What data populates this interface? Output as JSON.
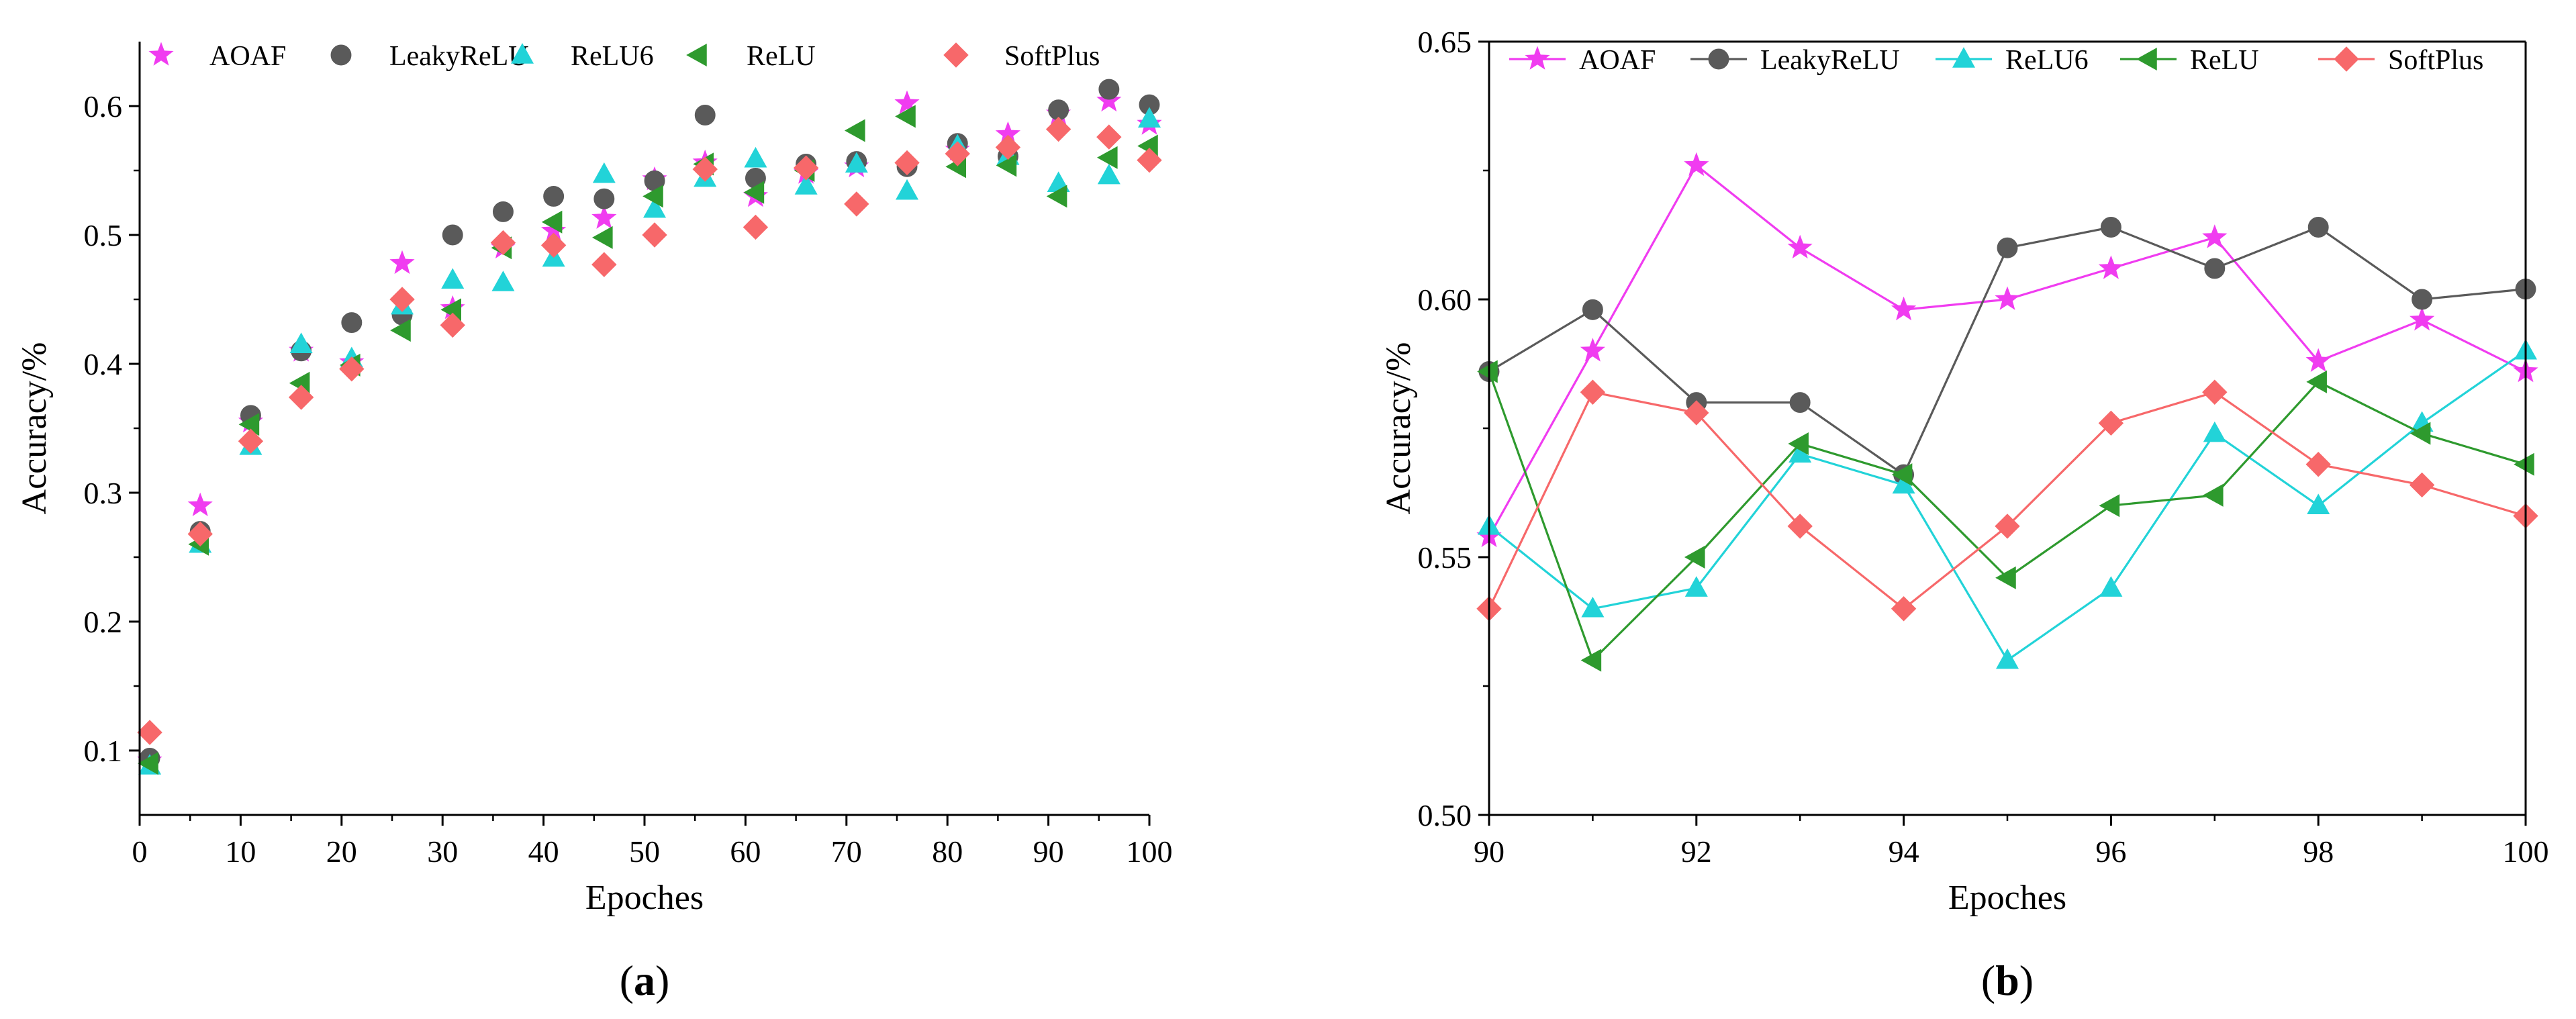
{
  "colors": {
    "AOAF": "#f03cf0",
    "LeakyReLU": "#5a5a5a",
    "ReLU6": "#22d3d8",
    "ReLU": "#2e9a2e",
    "SoftPlus": "#f7686a"
  },
  "chart_data": [
    {
      "type": "scatter",
      "panel_label": "a",
      "xlabel": "Epoches",
      "ylabel": "Accuracy/%",
      "xlim": [
        0,
        100
      ],
      "ylim": [
        0.05,
        0.65
      ],
      "xticks": [
        "0",
        "10",
        "20",
        "30",
        "40",
        "50",
        "60",
        "70",
        "80",
        "90",
        "100"
      ],
      "yticks": [
        "0.1",
        "0.2",
        "0.3",
        "0.4",
        "0.5",
        "0.6"
      ],
      "grid": false,
      "legend": "top",
      "x": [
        1,
        6,
        11,
        16,
        21,
        26,
        31,
        36,
        41,
        46,
        51,
        56,
        61,
        66,
        71,
        76,
        81,
        86,
        91,
        96,
        100
      ],
      "series": [
        {
          "name": "AOAF",
          "marker": "star-icon",
          "values": [
            0.092,
            0.29,
            0.355,
            0.41,
            0.401,
            0.478,
            0.443,
            0.49,
            0.503,
            0.513,
            0.543,
            0.556,
            0.53,
            0.548,
            0.553,
            0.602,
            0.566,
            0.578,
            0.594,
            0.604,
            0.586
          ]
        },
        {
          "name": "LeakyReLU",
          "marker": "circle-icon",
          "values": [
            0.094,
            0.27,
            0.36,
            0.41,
            0.432,
            0.438,
            0.5,
            0.518,
            0.53,
            0.528,
            0.542,
            0.593,
            0.544,
            0.555,
            0.557,
            0.553,
            0.571,
            0.561,
            0.597,
            0.613,
            0.601
          ]
        },
        {
          "name": "ReLU6",
          "marker": "triangle-up-icon",
          "values": [
            0.088,
            0.26,
            0.336,
            0.415,
            0.404,
            0.445,
            0.465,
            0.463,
            0.482,
            0.547,
            0.52,
            0.544,
            0.559,
            0.538,
            0.555,
            0.534,
            0.569,
            0.561,
            0.54,
            0.546,
            0.59
          ]
        },
        {
          "name": "ReLU",
          "marker": "triangle-left-icon",
          "values": [
            0.09,
            0.26,
            0.353,
            0.385,
            0.399,
            0.426,
            0.442,
            0.49,
            0.51,
            0.498,
            0.53,
            0.555,
            0.533,
            0.55,
            0.581,
            0.592,
            0.553,
            0.554,
            0.53,
            0.56,
            0.569
          ]
        },
        {
          "name": "SoftPlus",
          "marker": "diamond-icon",
          "values": [
            0.114,
            0.268,
            0.34,
            0.374,
            0.396,
            0.45,
            0.43,
            0.494,
            0.492,
            0.477,
            0.5,
            0.551,
            0.506,
            0.552,
            0.524,
            0.556,
            0.563,
            0.568,
            0.582,
            0.576,
            0.558
          ]
        }
      ]
    },
    {
      "type": "line",
      "panel_label": "b",
      "xlabel": "Epoches",
      "ylabel": "Accuracy/%",
      "xlim": [
        90,
        100
      ],
      "ylim": [
        0.5,
        0.65
      ],
      "xticks": [
        "90",
        "92",
        "94",
        "96",
        "98",
        "100"
      ],
      "yticks": [
        "0.50",
        "0.55",
        "0.60",
        "0.65"
      ],
      "grid": false,
      "legend": "top",
      "x": [
        90,
        91,
        92,
        93,
        94,
        95,
        96,
        97,
        98,
        99,
        100
      ],
      "series": [
        {
          "name": "AOAF",
          "marker": "star-icon",
          "values": [
            0.554,
            0.59,
            0.626,
            0.61,
            0.598,
            0.6,
            0.606,
            0.612,
            0.588,
            0.596,
            0.586
          ]
        },
        {
          "name": "LeakyReLU",
          "marker": "circle-icon",
          "values": [
            0.586,
            0.598,
            0.58,
            0.58,
            0.566,
            0.61,
            0.614,
            0.606,
            0.614,
            0.6,
            0.602
          ]
        },
        {
          "name": "ReLU6",
          "marker": "triangle-up-icon",
          "values": [
            0.556,
            0.54,
            0.544,
            0.57,
            0.564,
            0.53,
            0.544,
            0.574,
            0.56,
            0.576,
            0.59
          ]
        },
        {
          "name": "ReLU",
          "marker": "triangle-left-icon",
          "values": [
            0.586,
            0.53,
            0.55,
            0.572,
            0.566,
            0.546,
            0.56,
            0.562,
            0.584,
            0.574,
            0.568
          ]
        },
        {
          "name": "SoftPlus",
          "marker": "diamond-icon",
          "values": [
            0.54,
            0.582,
            0.578,
            0.556,
            0.54,
            0.556,
            0.576,
            0.582,
            0.568,
            0.564,
            0.558
          ]
        }
      ]
    }
  ]
}
